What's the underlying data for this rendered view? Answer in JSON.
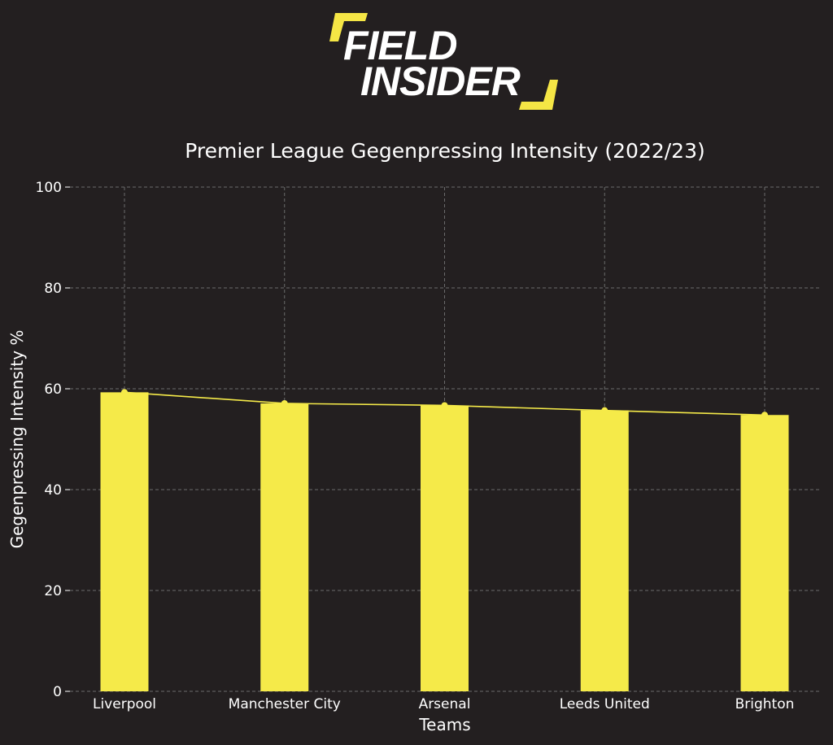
{
  "logo": {
    "line1": "FIELD",
    "line2": "INSIDER",
    "accent_color": "#f5e645"
  },
  "chart_data": {
    "type": "bar",
    "title": "Premier League Gegenpressing Intensity (2022/23)",
    "xlabel": "Teams",
    "ylabel": "Gegenpressing Intensity %",
    "categories": [
      "Liverpool",
      "Manchester City",
      "Arsenal",
      "Leeds United",
      "Brighton"
    ],
    "values": [
      59.3,
      57.1,
      56.7,
      55.7,
      54.8
    ],
    "ylim": [
      0,
      100
    ],
    "yticks": [
      0,
      20,
      40,
      60,
      80,
      100
    ],
    "grid": true,
    "overlay_line": true,
    "bar_color": "#f5ea49",
    "line_color": "#f5ea49",
    "background": "#231f20",
    "grid_color": "#6b6b6b"
  }
}
